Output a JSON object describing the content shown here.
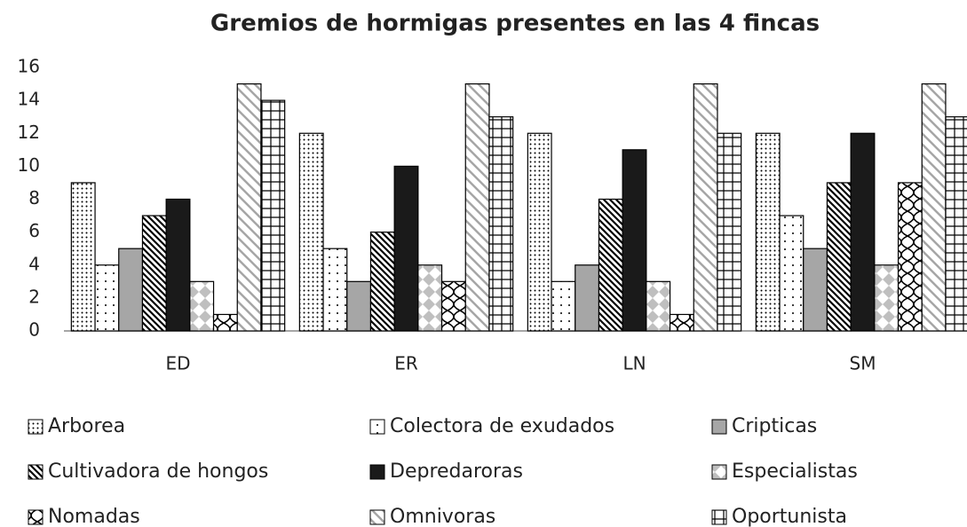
{
  "chart_data": {
    "type": "bar",
    "title": "Gremios de hormigas presentes en las 4 fincas",
    "categories": [
      "ED",
      "ER",
      "LN",
      "SM"
    ],
    "series": [
      {
        "name": "Arborea",
        "color": "#000000",
        "values": [
          9,
          12,
          12,
          12
        ]
      },
      {
        "name": "Colectora de exudados",
        "color": "#000000",
        "values": [
          4,
          5,
          3,
          7
        ]
      },
      {
        "name": "Cripticas",
        "color": "#a6a6a6",
        "values": [
          5,
          3,
          4,
          5
        ]
      },
      {
        "name": "Cultivadora de hongos",
        "color": "#000000",
        "values": [
          7,
          6,
          8,
          9
        ]
      },
      {
        "name": "Depredaroras",
        "color": "#1a1a1a",
        "values": [
          8,
          10,
          11,
          12
        ]
      },
      {
        "name": "Especialistas",
        "color": "#bfbfbf",
        "values": [
          3,
          4,
          3,
          4
        ]
      },
      {
        "name": "Nomadas",
        "color": "#000000",
        "values": [
          1,
          3,
          1,
          9
        ]
      },
      {
        "name": "Omnivoras",
        "color": "#a6a6a6",
        "values": [
          15,
          15,
          15,
          15
        ]
      },
      {
        "name": "Oportunista",
        "color": "#000000",
        "values": [
          14,
          13,
          12,
          13
        ]
      }
    ],
    "ylim": [
      0,
      16
    ],
    "yticks": [
      0,
      2,
      4,
      6,
      8,
      10,
      12,
      14,
      16
    ],
    "grid": false,
    "legend": "bottom"
  }
}
